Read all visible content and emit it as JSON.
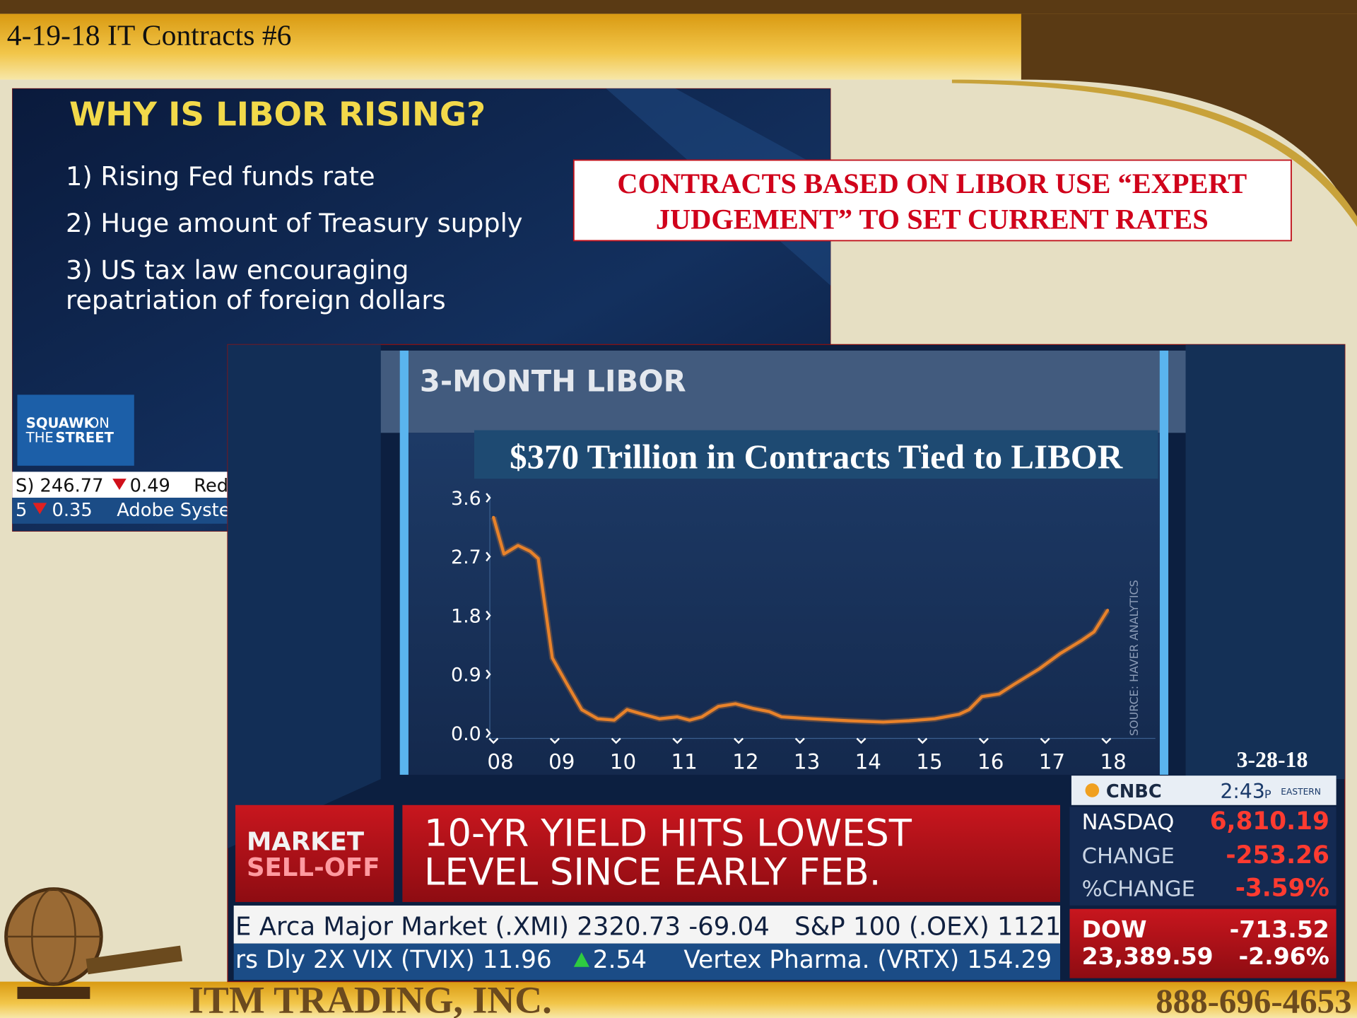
{
  "header": {
    "title": "4-19-18 IT Contracts #6"
  },
  "callout": {
    "lines": [
      "CONTRACTS BASED ON LIBOR USE “EXPERT",
      "JUDGEMENT” TO SET CURRENT RATES"
    ]
  },
  "screenshot_1": {
    "heading": "WHY IS LIBOR RISING?",
    "items": [
      "1) Rising Fed funds rate",
      "2) Huge amount of Treasury supply",
      "3) US tax law encouraging",
      "repatriation of foreign dollars"
    ],
    "logo": [
      "SQUAWK",
      "ON",
      "THE",
      "STREET"
    ],
    "ticker": [
      "S) 246.77",
      "0.49",
      "Red",
      "5",
      "0.35",
      "Adobe Syste"
    ]
  },
  "chart_data": {
    "type": "line",
    "title": "3-MONTH LIBOR",
    "annotation": "$370 Trillion in Contracts Tied to LIBOR",
    "source": "SOURCE: HAVER ANALYTICS",
    "color": "#e8822a",
    "x": [
      8.0,
      8.17,
      8.4,
      8.6,
      8.73,
      8.96,
      9.2,
      9.44,
      9.7,
      9.97,
      10.18,
      10.4,
      10.71,
      11.0,
      11.2,
      11.4,
      11.67,
      11.95,
      12.23,
      12.5,
      12.7,
      13.2,
      13.8,
      14.36,
      14.78,
      15.2,
      15.6,
      15.76,
      15.97,
      16.25,
      16.5,
      16.9,
      17.25,
      17.6,
      17.8,
      18.02
    ],
    "values": [
      3.3,
      2.74,
      2.87,
      2.78,
      2.67,
      1.15,
      0.75,
      0.36,
      0.22,
      0.2,
      0.36,
      0.3,
      0.22,
      0.25,
      0.2,
      0.25,
      0.41,
      0.45,
      0.38,
      0.33,
      0.25,
      0.22,
      0.19,
      0.17,
      0.19,
      0.22,
      0.29,
      0.36,
      0.56,
      0.6,
      0.75,
      0.98,
      1.22,
      1.42,
      1.55,
      1.88
    ],
    "xlim": [
      7.94,
      18.8
    ],
    "ylim": [
      0,
      3.6
    ],
    "xticks": [
      {
        "value": 8,
        "label": "08"
      },
      {
        "value": 9,
        "label": "09"
      },
      10,
      11,
      12,
      13,
      14,
      15,
      16,
      17,
      18
    ],
    "yticks": [
      {
        "value": 0,
        "label": "0.0"
      },
      0.9,
      1.8,
      2.7,
      3.6
    ]
  },
  "broadcast": {
    "date": "3-28-18",
    "network": "CNBC",
    "time": "2:43",
    "time_suffix": "P",
    "zone": "EASTERN",
    "market": [
      "MARKET",
      "SELL-OFF"
    ],
    "headline": [
      "10-YR YIELD HITS LOWEST",
      "LEVEL SINCE EARLY FEB."
    ],
    "quotes": [
      {
        "label": "NASDAQ",
        "value": "6,810.19"
      },
      {
        "label": "CHANGE",
        "value": "-253.26"
      },
      {
        "label": "%CHANGE",
        "value": "-3.59%"
      }
    ],
    "dow": {
      "label": "DOW",
      "level": "23,389.59",
      "change": "-713.52",
      "pct": "-2.96%"
    },
    "tickers": [
      "E Arca Major Market (.XMI) 2320.73 -69.04",
      "S&P 100 (.OEX) 1121.",
      "rs Dly 2X VIX (TVIX) 11.96",
      "2.54",
      "Vertex Pharma. (VRTX) 154.29"
    ]
  },
  "footer": {
    "company": "ITM TRADING, INC.",
    "phone": "888-696-4653"
  }
}
